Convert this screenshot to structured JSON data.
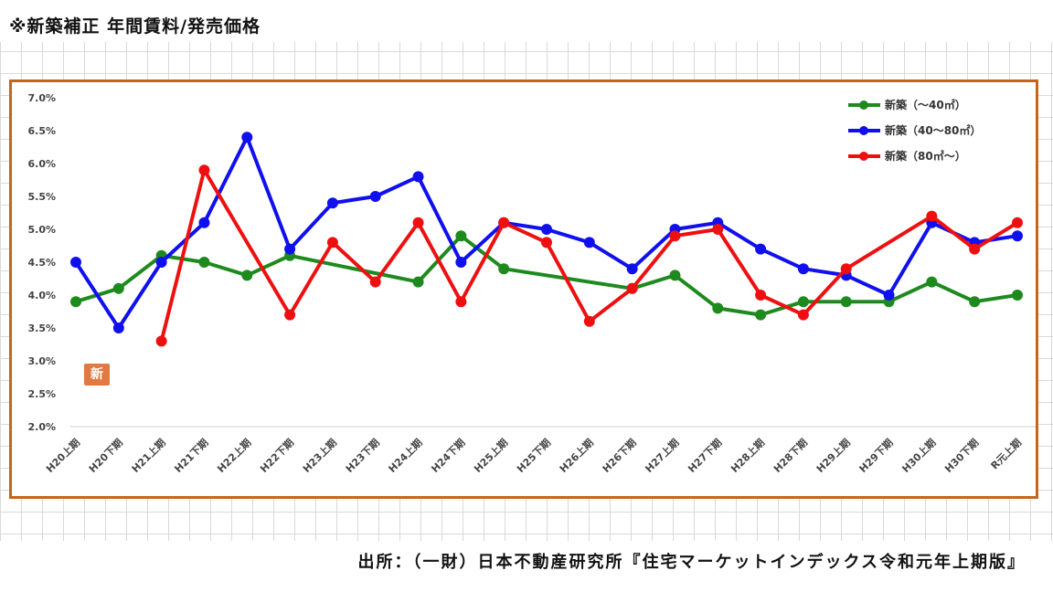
{
  "title": "※新築補正 年間賃料/発売価格",
  "source": "出所：（一財）日本不動産研究所『住宅マーケットインデックス令和元年上期版』",
  "stamp_text": "新",
  "chart_data": {
    "type": "line",
    "title": "",
    "xlabel": "",
    "ylabel": "",
    "ylim": [
      2.0,
      7.0
    ],
    "yticks": [
      "7.0%",
      "6.5%",
      "6.0%",
      "5.5%",
      "5.0%",
      "4.5%",
      "4.0%",
      "3.5%",
      "3.0%",
      "2.5%",
      "2.0%"
    ],
    "grid": false,
    "legend_position": "top-right",
    "categories": [
      "H20上期",
      "H20下期",
      "H21上期",
      "H21下期",
      "H22上期",
      "H22下期",
      "H23上期",
      "H23下期",
      "H24上期",
      "H24下期",
      "H25上期",
      "H25下期",
      "H26上期",
      "H26下期",
      "H27上期",
      "H27下期",
      "H28上期",
      "H28下期",
      "H29上期",
      "H29下期",
      "H30上期",
      "H30下期",
      "R元上期"
    ],
    "series": [
      {
        "name": "新築（～40㎡）",
        "color": "#1e8a1e",
        "values": [
          3.9,
          4.1,
          4.6,
          4.5,
          4.3,
          4.6,
          null,
          null,
          4.2,
          4.9,
          4.4,
          null,
          null,
          4.1,
          4.3,
          3.8,
          3.7,
          3.9,
          3.9,
          3.9,
          4.2,
          3.9,
          4.0
        ]
      },
      {
        "name": "新築（40～80㎡）",
        "color": "#1010ee",
        "values": [
          4.5,
          3.5,
          4.5,
          5.1,
          6.4,
          4.7,
          5.4,
          5.5,
          5.8,
          4.5,
          5.1,
          5.0,
          4.8,
          4.4,
          5.0,
          5.1,
          4.7,
          4.4,
          4.3,
          4.0,
          5.1,
          4.8,
          4.9
        ]
      },
      {
        "name": "新築（80㎡～）",
        "color": "#ee1010",
        "values": [
          null,
          null,
          3.3,
          5.9,
          null,
          3.7,
          4.8,
          4.2,
          5.1,
          3.9,
          5.1,
          4.8,
          3.6,
          4.1,
          4.9,
          5.0,
          4.0,
          3.7,
          4.4,
          null,
          5.2,
          4.7,
          5.1
        ]
      }
    ]
  }
}
